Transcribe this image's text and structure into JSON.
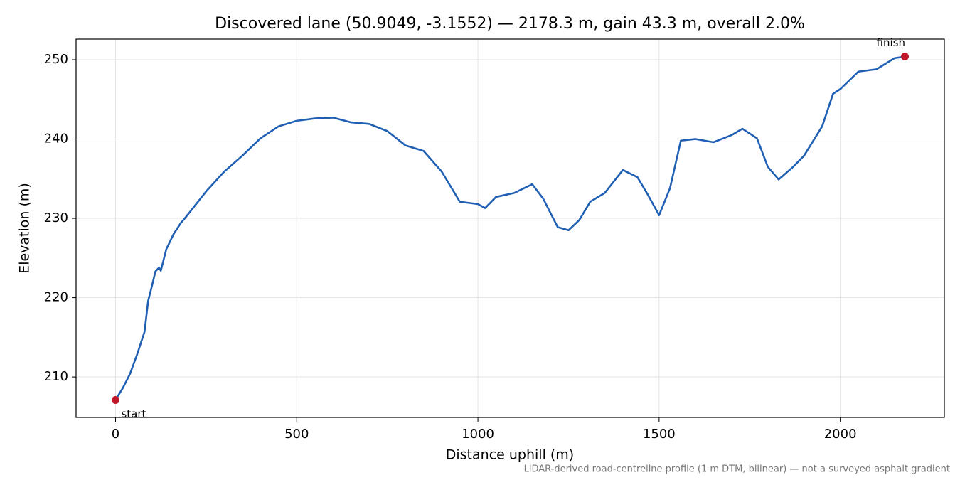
{
  "chart_data": {
    "type": "line",
    "title": "Discovered lane (50.9049, -3.1552) — 2178.3 m, gain 43.3 m, overall 2.0%",
    "x_label": "Distance uphill (m)",
    "y_label": "Elevation (m)",
    "footnote": "LiDAR-derived road-centreline profile (1 m DTM, bilinear) — not a surveyed asphalt gradient",
    "x": [
      0,
      20,
      40,
      60,
      80,
      90,
      100,
      110,
      120,
      125,
      140,
      160,
      180,
      200,
      250,
      300,
      350,
      400,
      450,
      500,
      550,
      600,
      650,
      700,
      750,
      800,
      850,
      900,
      950,
      1000,
      1020,
      1050,
      1100,
      1150,
      1180,
      1220,
      1250,
      1280,
      1310,
      1350,
      1400,
      1440,
      1470,
      1500,
      1530,
      1560,
      1600,
      1650,
      1700,
      1730,
      1770,
      1800,
      1830,
      1870,
      1900,
      1950,
      1980,
      2000,
      2050,
      2100,
      2150,
      2178.3
    ],
    "series": [
      {
        "name": "Elevation",
        "color": "#1f5fb4",
        "values": [
          207.1,
          208.6,
          210.4,
          212.9,
          215.7,
          219.6,
          221.4,
          223.3,
          223.8,
          223.4,
          226.1,
          228.0,
          229.4,
          230.5,
          233.4,
          235.9,
          237.9,
          240.1,
          241.6,
          242.3,
          242.6,
          242.7,
          242.1,
          241.9,
          241.0,
          239.2,
          238.5,
          235.9,
          232.1,
          231.8,
          231.3,
          232.7,
          233.2,
          234.3,
          232.5,
          228.9,
          228.5,
          229.8,
          232.1,
          233.2,
          236.1,
          235.2,
          232.9,
          230.4,
          233.8,
          239.8,
          240.0,
          239.6,
          240.5,
          241.3,
          240.1,
          236.5,
          234.9,
          236.5,
          237.9,
          241.6,
          245.7,
          246.3,
          248.5,
          248.8,
          250.2,
          250.4
        ]
      }
    ],
    "annotations": [
      {
        "text": "start",
        "x": 0,
        "y": 207.1
      },
      {
        "text": "finish",
        "x": 2178.3,
        "y": 250.4
      }
    ],
    "marker_color": "#c0182a",
    "xlim": [
      -108.9,
      2287.2
    ],
    "ylim": [
      204.9,
      252.6
    ],
    "xticks": [
      0,
      500,
      1000,
      1500,
      2000
    ],
    "yticks": [
      210,
      220,
      230,
      240,
      250
    ],
    "grid": true
  }
}
